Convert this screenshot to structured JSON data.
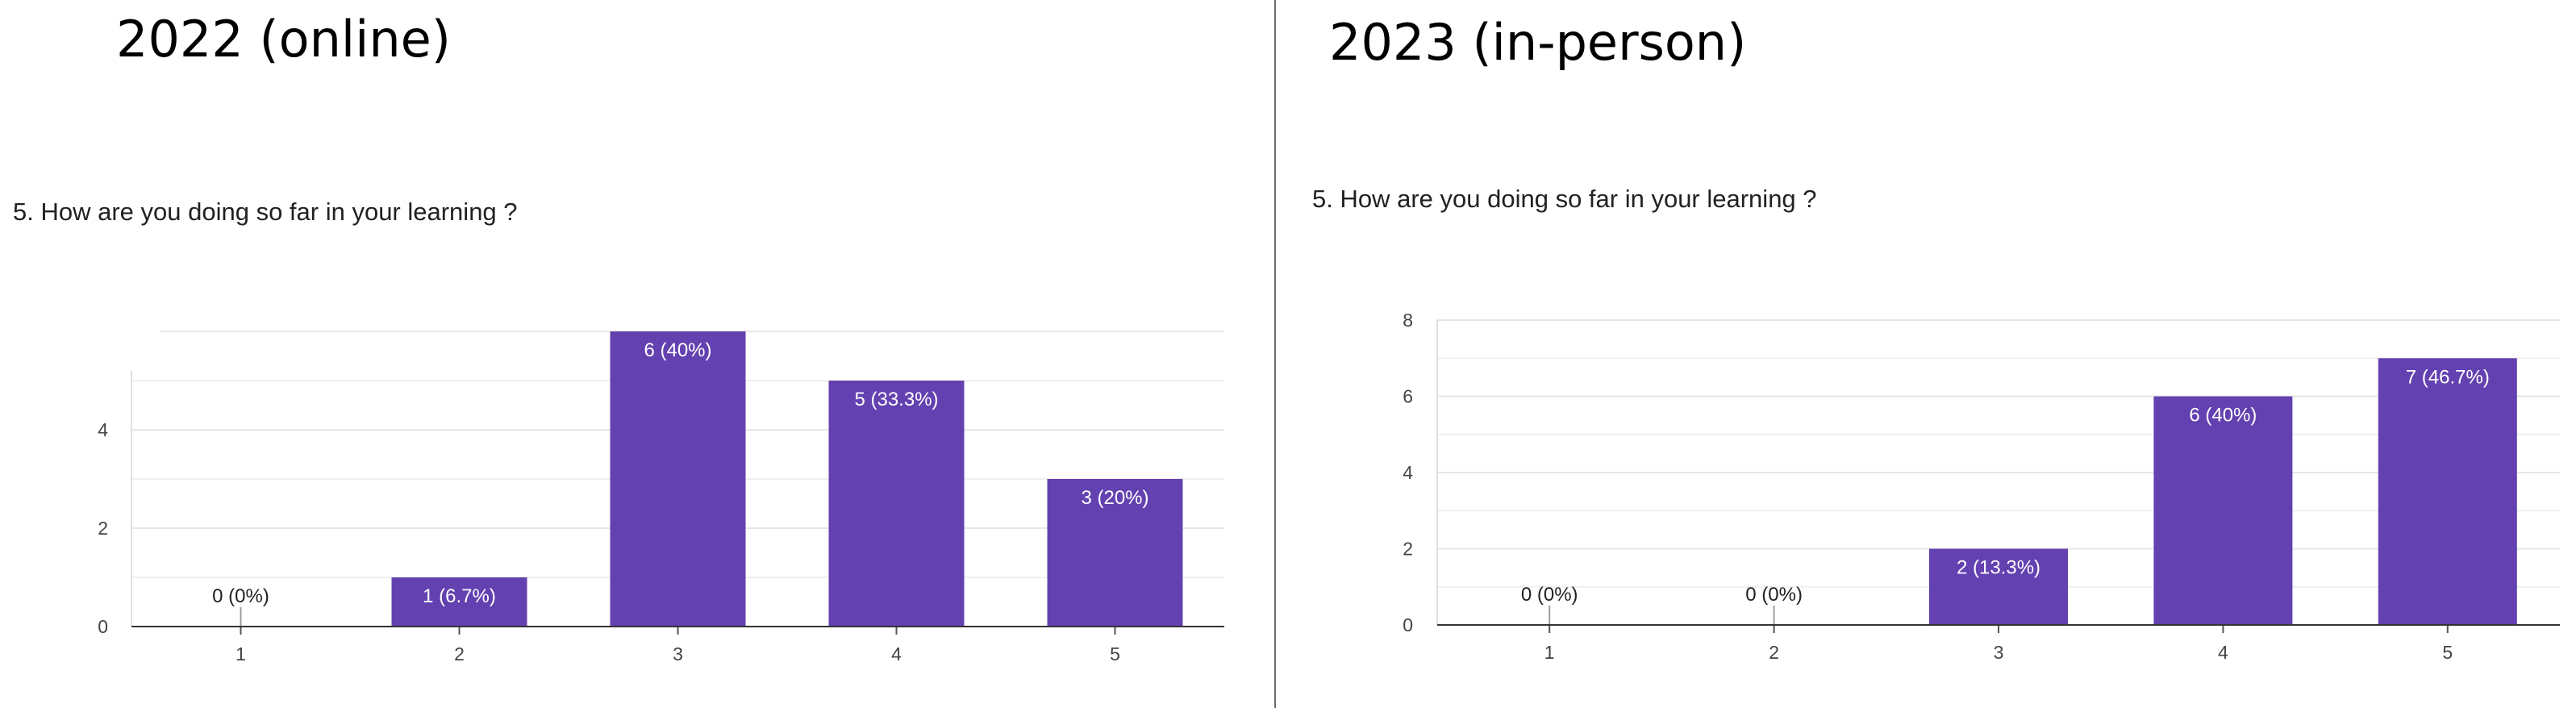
{
  "panels": [
    {
      "title": "2022 (online)",
      "question": "5. How are you doing so far in your learning ?"
    },
    {
      "title": "2023 (in-person)",
      "question": "5. How are you doing so far in your learning ?"
    }
  ],
  "chart_data": [
    {
      "type": "bar",
      "title": "",
      "categories": [
        "1",
        "2",
        "3",
        "4",
        "5"
      ],
      "values": [
        0,
        1,
        6,
        5,
        3
      ],
      "data_labels": [
        "0 (0%)",
        "1 (6.7%)",
        "6 (40%)",
        "5 (33.3%)",
        "3 (20%)"
      ],
      "y_ticks": [
        "0",
        "2",
        "4"
      ],
      "ylim": [
        0,
        6
      ],
      "grid": true,
      "bar_color": "#6441b0"
    },
    {
      "type": "bar",
      "title": "",
      "categories": [
        "1",
        "2",
        "3",
        "4",
        "5"
      ],
      "values": [
        0,
        0,
        2,
        6,
        7
      ],
      "data_labels": [
        "0 (0%)",
        "0 (0%)",
        "2 (13.3%)",
        "6 (40%)",
        "7 (46.7%)"
      ],
      "y_ticks": [
        "0",
        "2",
        "4",
        "6",
        "8"
      ],
      "ylim": [
        0,
        8
      ],
      "grid": true,
      "bar_color": "#6441b0"
    }
  ]
}
